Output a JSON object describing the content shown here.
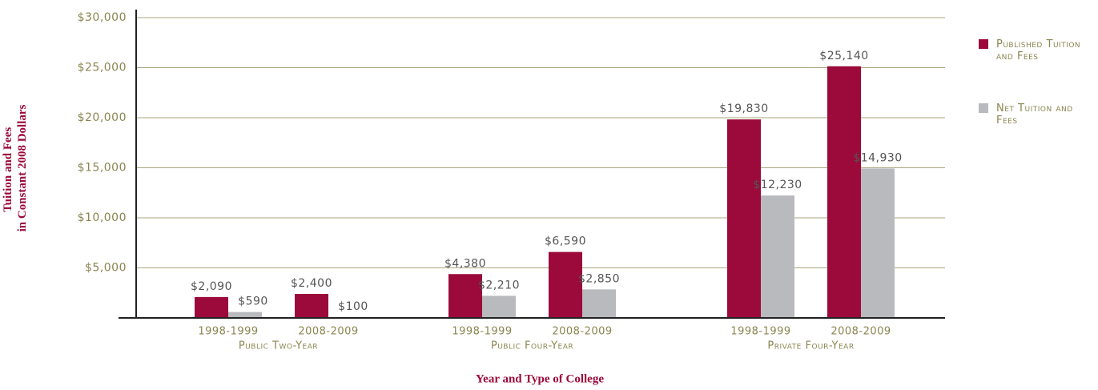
{
  "chart_data": {
    "type": "bar",
    "y_label": [
      "Tuition and Fees",
      "in Constant 2008 Dollars"
    ],
    "x_label": "Year and Type of College",
    "categories": [
      "1998-1999",
      "2008-2009",
      "1998-1999",
      "2008-2009",
      "1998-1999",
      "2008-2009"
    ],
    "groups": [
      "Public Two-Year",
      "Public Four-Year",
      "Private Four-Year"
    ],
    "series": [
      {
        "name": "Published Tuition and Fees",
        "color": "#9b0a3a",
        "values": [
          2090,
          2400,
          4380,
          6590,
          19830,
          25140
        ],
        "value_labels": [
          "$2,090",
          "$2,400",
          "$4,380",
          "$6,590",
          "$19,830",
          "$25,140"
        ]
      },
      {
        "name": "Net Tuition and Fees",
        "color": "#b9babd",
        "values": [
          590,
          100,
          2210,
          2850,
          12230,
          14930
        ],
        "value_labels": [
          "$590",
          "$100",
          "$2,210",
          "$2,850",
          "$12,230",
          "$14,930"
        ]
      }
    ],
    "ylim": [
      0,
      30000
    ],
    "yticks": [
      {
        "value": 5000,
        "label": "$5,000"
      },
      {
        "value": 10000,
        "label": "$10,000"
      },
      {
        "value": 15000,
        "label": "$15,000"
      },
      {
        "value": 20000,
        "label": "$20,000"
      },
      {
        "value": 25000,
        "label": "$25,000"
      },
      {
        "value": 30000,
        "label": "$30,000"
      }
    ],
    "grid": true
  }
}
